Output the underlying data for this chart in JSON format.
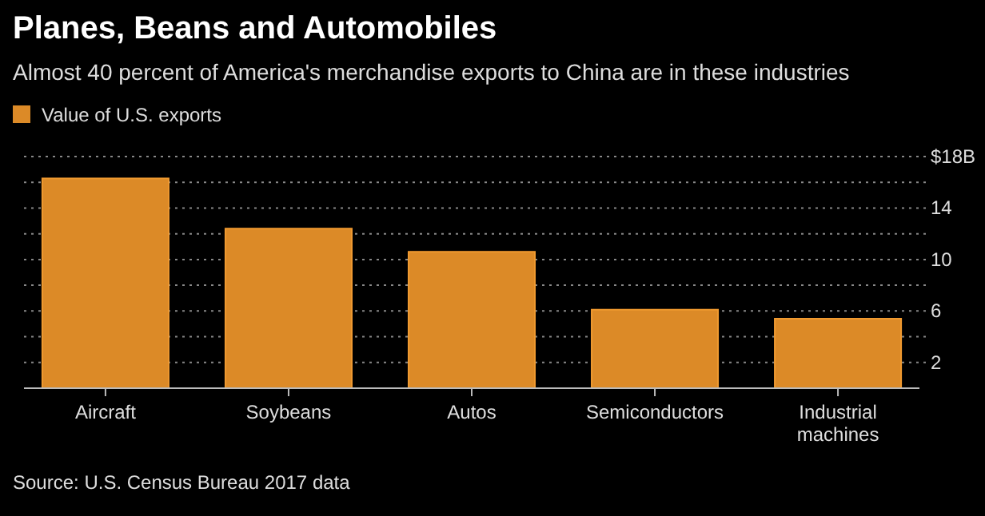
{
  "chart_data": {
    "type": "bar",
    "title": "Planes, Beans and Automobiles",
    "subtitle": "Almost 40 percent of America's merchandise exports to China are in these industries",
    "categories": [
      "Aircraft",
      "Soybeans",
      "Autos",
      "Semiconductors",
      "Industrial machines"
    ],
    "series": [
      {
        "name": "Value of U.S. exports",
        "color": "#dc8a27",
        "values": [
          16.3,
          12.4,
          10.6,
          6.1,
          5.4
        ]
      }
    ],
    "ylim": [
      0,
      18
    ],
    "yticks": [
      2,
      {
        "value": 4,
        "label": null
      },
      6,
      {
        "value": 8,
        "label": null
      },
      10,
      {
        "value": 12,
        "label": null
      },
      14,
      {
        "value": 16,
        "label": null
      },
      {
        "value": 18,
        "label": "$18B"
      }
    ],
    "grid": true,
    "legend": "top left",
    "annotations": [
      "Source: U.S. Census Bureau 2017 data"
    ]
  }
}
